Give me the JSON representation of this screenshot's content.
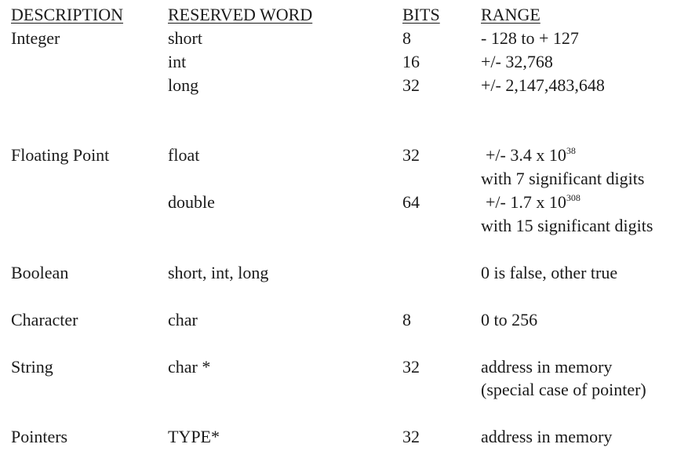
{
  "headers": {
    "description": "DESCRIPTION",
    "reserved_word": "RESERVED WORD",
    "bits": "BITS",
    "range": "RANGE"
  },
  "integer": {
    "description": "Integer",
    "short": {
      "word": "short",
      "bits": "8",
      "range": "- 128 to + 127"
    },
    "int": {
      "word": "int",
      "bits": "16",
      "range": "+/- 32,768"
    },
    "long": {
      "word": "long",
      "bits": "32",
      "range": "+/- 2,147,483,648"
    }
  },
  "floating_point": {
    "description": "Floating Point",
    "float": {
      "word": "float",
      "bits": "32",
      "range_base": "+/- 3.4 x 10",
      "range_exp": "38",
      "range_note": "with 7 significant digits"
    },
    "double": {
      "word": "double",
      "bits": "64",
      "range_base": "+/- 1.7 x 10",
      "range_exp": "308",
      "range_note": "with 15 significant digits"
    }
  },
  "boolean": {
    "description": "Boolean",
    "word": "short, int, long",
    "bits": "",
    "range": "0 is false, other true"
  },
  "character": {
    "description": "Character",
    "word": "char",
    "bits": "8",
    "range": "0 to 256"
  },
  "string": {
    "description": "String",
    "word": "char *",
    "bits": "32",
    "range": "address in memory",
    "range_note": "(special case of pointer)"
  },
  "pointers": {
    "description": "Pointers",
    "word": "TYPE*",
    "bits": "32",
    "range": "address in memory"
  }
}
